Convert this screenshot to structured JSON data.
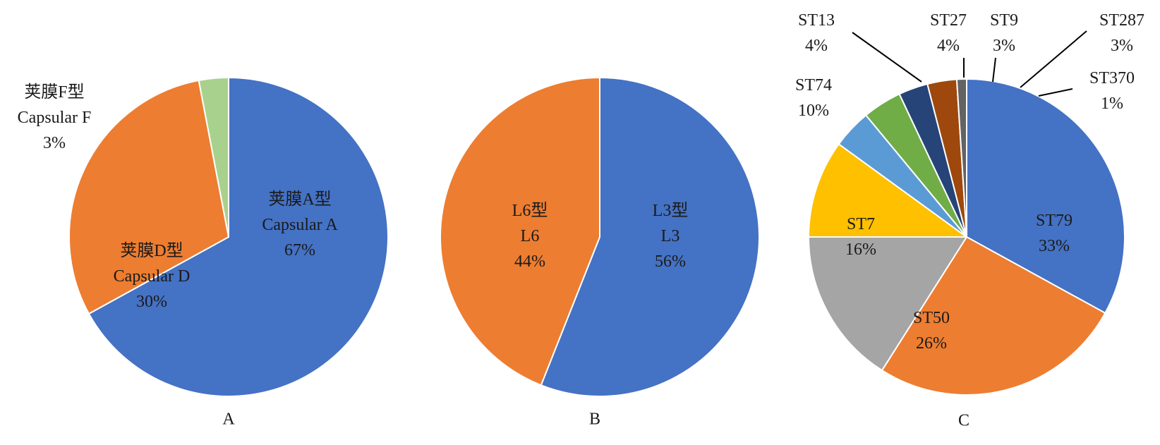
{
  "chart_data": [
    {
      "type": "pie",
      "panel_label": "A",
      "slices": [
        {
          "lines": [
            "荚膜A型",
            "Capsular A",
            "67%"
          ],
          "value": 67,
          "color": "#4472C4"
        },
        {
          "lines": [
            "荚膜D型",
            "Capsular D",
            "30%"
          ],
          "value": 30,
          "color": "#ED7D31"
        },
        {
          "lines": [
            "荚膜F型",
            "Capsular F",
            "3%"
          ],
          "value": 3,
          "color": "#A9D18E"
        }
      ]
    },
    {
      "type": "pie",
      "panel_label": "B",
      "slices": [
        {
          "lines": [
            "L3型",
            "L3",
            "56%"
          ],
          "value": 56,
          "color": "#4472C4"
        },
        {
          "lines": [
            "L6型",
            "L6",
            "44%"
          ],
          "value": 44,
          "color": "#ED7D31"
        }
      ]
    },
    {
      "type": "pie",
      "panel_label": "C",
      "slices": [
        {
          "lines": [
            "ST79",
            "33%"
          ],
          "value": 33,
          "color": "#4472C4"
        },
        {
          "lines": [
            "ST50",
            "26%"
          ],
          "value": 26,
          "color": "#ED7D31"
        },
        {
          "lines": [
            "ST7",
            "16%"
          ],
          "value": 16,
          "color": "#A5A5A5"
        },
        {
          "lines": [
            "ST74",
            "10%"
          ],
          "value": 10,
          "color": "#FFC000"
        },
        {
          "lines": [
            "ST13",
            "4%"
          ],
          "value": 4,
          "color": "#5B9BD5"
        },
        {
          "lines": [
            "ST27",
            "4%"
          ],
          "value": 4,
          "color": "#70AD47"
        },
        {
          "lines": [
            "ST9",
            "3%"
          ],
          "value": 3,
          "color": "#264478"
        },
        {
          "lines": [
            "ST287",
            "3%"
          ],
          "value": 3,
          "color": "#9E480E"
        },
        {
          "lines": [
            "ST370",
            "1%"
          ],
          "value": 1,
          "color": "#636363"
        }
      ]
    }
  ]
}
